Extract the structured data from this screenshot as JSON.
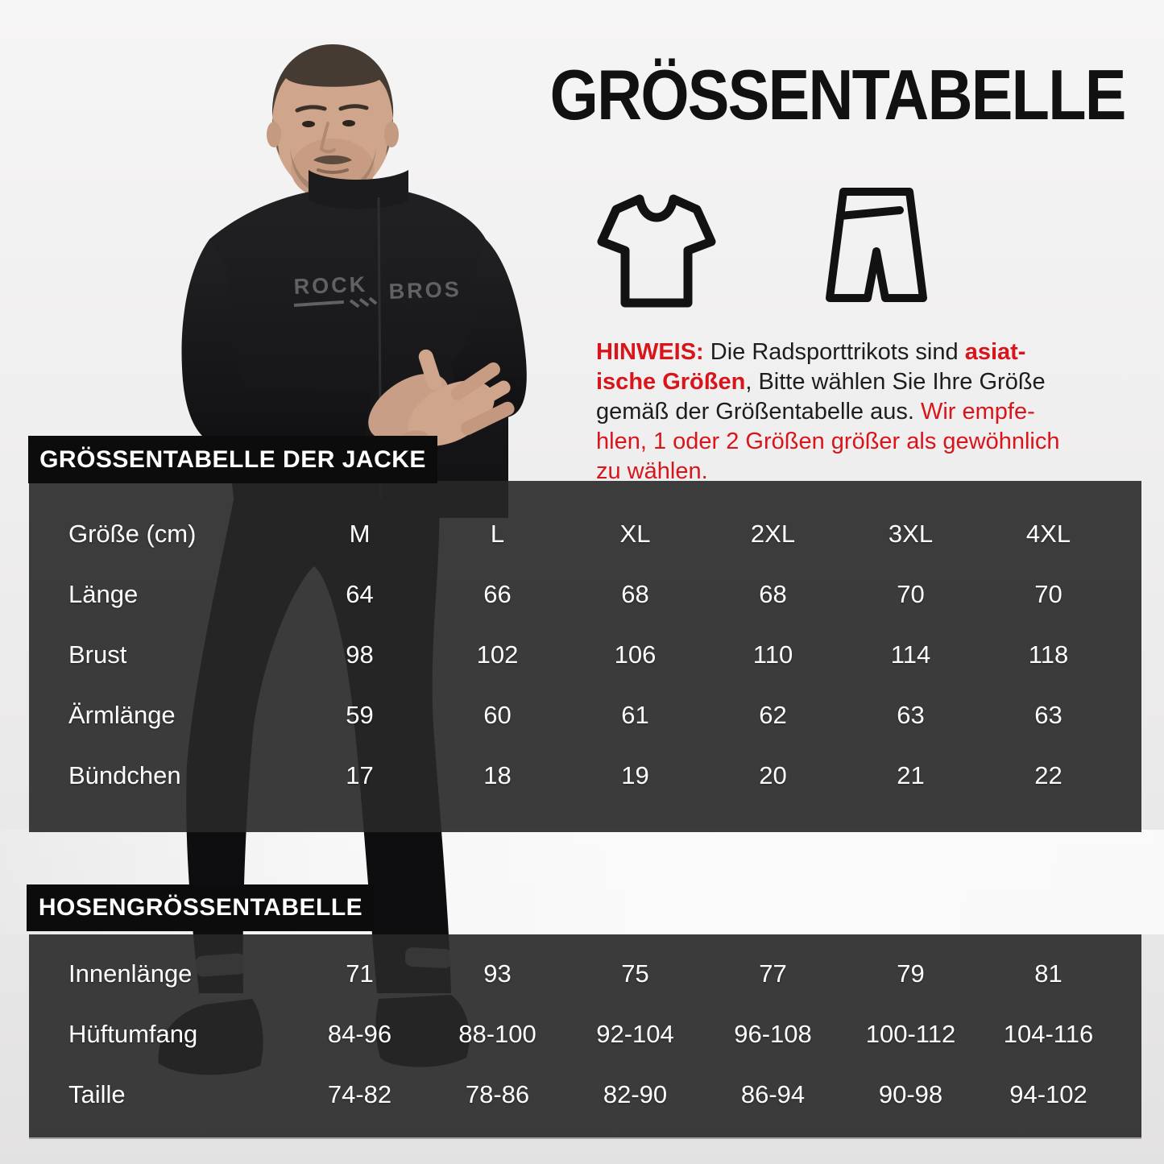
{
  "page_title": "GRÖSSENTABELLE",
  "model": {
    "jersey_brand_left": "ROCK",
    "jersey_brand_right": "BROS"
  },
  "icons": [
    {
      "name": "tshirt-icon"
    },
    {
      "name": "shorts-icon"
    }
  ],
  "note": {
    "lines": [
      [
        {
          "t": "HINWEIS:",
          "c": "red",
          "b": true
        },
        {
          "t": " Die Radsporttrikots sind ",
          "c": "dark",
          "b": false
        },
        {
          "t": "asiat-",
          "c": "red",
          "b": true
        }
      ],
      [
        {
          "t": "ische Größen",
          "c": "red",
          "b": true
        },
        {
          "t": ", Bitte wählen Sie Ihre Größe",
          "c": "dark",
          "b": false
        }
      ],
      [
        {
          "t": "gemäß der Größentabelle aus. ",
          "c": "dark",
          "b": false
        },
        {
          "t": "Wir empfe-",
          "c": "red",
          "b": false
        }
      ],
      [
        {
          "t": "hlen, 1 oder 2 Größen größer als gewöhnlich",
          "c": "red",
          "b": false
        }
      ],
      [
        {
          "t": "zu wählen.",
          "c": "red",
          "b": false
        }
      ]
    ]
  },
  "jacket_table": {
    "label": "GRÖSSENTABELLE DER JACKE",
    "header": [
      "Größe (cm)",
      "M",
      "L",
      "XL",
      "2XL",
      "3XL",
      "4XL"
    ],
    "rows": [
      {
        "label": "Länge",
        "values": [
          "64",
          "66",
          "68",
          "68",
          "70",
          "70"
        ]
      },
      {
        "label": "Brust",
        "values": [
          "98",
          "102",
          "106",
          "110",
          "114",
          "118"
        ]
      },
      {
        "label": "Ärmlänge",
        "values": [
          "59",
          "60",
          "61",
          "62",
          "63",
          "63"
        ]
      },
      {
        "label": "Bündchen",
        "values": [
          "17",
          "18",
          "19",
          "20",
          "21",
          "22"
        ]
      }
    ]
  },
  "pants_table": {
    "label": "HOSENGRÖSSENTABELLE",
    "rows": [
      {
        "label": "Innenlänge",
        "values": [
          "71",
          "93",
          "75",
          "77",
          "79",
          "81"
        ]
      },
      {
        "label": "Hüftumfang",
        "values": [
          "84-96",
          "88-100",
          "92-104",
          "96-108",
          "100-112",
          "104-116"
        ]
      },
      {
        "label": "Taille",
        "values": [
          "74-82",
          "78-86",
          "82-90",
          "86-94",
          "90-98",
          "94-102"
        ]
      }
    ]
  },
  "colors": {
    "accent_red": "#d9151c",
    "label_bg": "#0c0c0c",
    "table_overlay": "rgba(40,40,40,0.9)",
    "text_light": "#ffffff",
    "text_dark": "#1d1d1d"
  }
}
